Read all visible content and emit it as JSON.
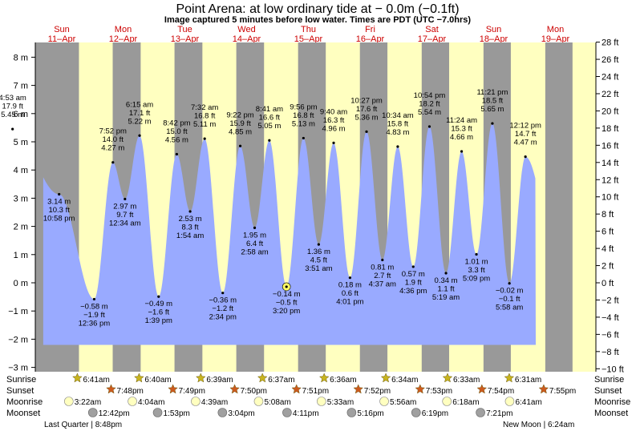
{
  "title": "Point Arena: at low  ordinary tide at − 0.0m (−0.1ft)",
  "subtitle": "Image captured 5 minutes before low water. Times are PDT (UTC −7.0hrs)",
  "days": [
    {
      "dow": "Sun",
      "date": "11–Apr"
    },
    {
      "dow": "Mon",
      "date": "12–Apr"
    },
    {
      "dow": "Tue",
      "date": "13–Apr"
    },
    {
      "dow": "Wed",
      "date": "14–Apr"
    },
    {
      "dow": "Thu",
      "date": "15–Apr"
    },
    {
      "dow": "Fri",
      "date": "16–Apr"
    },
    {
      "dow": "Sat",
      "date": "17–Apr"
    },
    {
      "dow": "Sun",
      "date": "18–Apr"
    },
    {
      "dow": "Mon",
      "date": "19–Apr"
    }
  ],
  "row_labels": {
    "sunrise": "Sunrise",
    "sunset": "Sunset",
    "moonrise": "Moonrise",
    "moonset": "Moonset"
  },
  "moon_notes": {
    "last_quarter": "Last Quarter | 8:48pm",
    "new_moon": "New Moon | 6:24am"
  },
  "colors": {
    "day": "#ffffc0",
    "night": "#999999",
    "water": "#99aaff",
    "day_label": "#cc0000",
    "sunrise_star": "#c8b41e",
    "sunset_star": "#cc5a1e",
    "moonrise": "#ffffc0",
    "moonset": "#a0a0a0",
    "current_marker": "#ffff66"
  },
  "chart_data": {
    "type": "area",
    "ylim_m": [
      -3,
      8.5
    ],
    "y_ticks_m": [
      8,
      7,
      6,
      5,
      4,
      3,
      2,
      1,
      0,
      -1,
      -2,
      -3
    ],
    "y_ticks_ft": [
      28,
      26,
      24,
      22,
      20,
      18,
      16,
      14,
      12,
      10,
      8,
      6,
      4,
      2,
      0,
      -2,
      -4,
      -6,
      -8,
      -10
    ],
    "tides": [
      {
        "day": 0,
        "time": "4:53 am",
        "ft": "17.9 ft",
        "m": 5.45,
        "type": "high"
      },
      {
        "day": 0,
        "time": "10:58 pm",
        "ft": "10.3 ft",
        "m": 3.14,
        "type": "low"
      },
      {
        "day": 1,
        "time": "12:36 pm",
        "ft": "−1.9 ft",
        "m": -0.58,
        "type": "low"
      },
      {
        "day": 1,
        "time": "7:52 pm",
        "ft": "14.0 ft",
        "m": 4.27,
        "type": "high"
      },
      {
        "day": 2,
        "time": "12:34 am",
        "ft": "9.7 ft",
        "m": 2.97,
        "type": "low"
      },
      {
        "day": 2,
        "time": "6:15 am",
        "ft": "17.1 ft",
        "m": 5.22,
        "type": "high"
      },
      {
        "day": 2,
        "time": "1:39 pm",
        "ft": "−1.6 ft",
        "m": -0.49,
        "type": "low"
      },
      {
        "day": 2,
        "time": "8:42 pm",
        "ft": "15.0 ft",
        "m": 4.56,
        "type": "high"
      },
      {
        "day": 3,
        "time": "1:54 am",
        "ft": "8.3 ft",
        "m": 2.53,
        "type": "low"
      },
      {
        "day": 3,
        "time": "7:32 am",
        "ft": "16.8 ft",
        "m": 5.11,
        "type": "high"
      },
      {
        "day": 3,
        "time": "2:34 pm",
        "ft": "−1.2 ft",
        "m": -0.36,
        "type": "low"
      },
      {
        "day": 3,
        "time": "9:22 pm",
        "ft": "15.9 ft",
        "m": 4.85,
        "type": "high"
      },
      {
        "day": 4,
        "time": "2:58 am",
        "ft": "6.4 ft",
        "m": 1.95,
        "type": "low"
      },
      {
        "day": 4,
        "time": "8:41 am",
        "ft": "16.6 ft",
        "m": 5.05,
        "type": "high"
      },
      {
        "day": 4,
        "time": "3:20 pm",
        "ft": "−0.5 ft",
        "m": -0.14,
        "type": "low"
      },
      {
        "day": 4,
        "time": "9:56 pm",
        "ft": "16.8 ft",
        "m": 5.13,
        "type": "high"
      },
      {
        "day": 5,
        "time": "3:51 am",
        "ft": "4.5 ft",
        "m": 1.36,
        "type": "low"
      },
      {
        "day": 5,
        "time": "9:40 am",
        "ft": "16.3 ft",
        "m": 4.96,
        "type": "high"
      },
      {
        "day": 5,
        "time": "4:01 pm",
        "ft": "0.6 ft",
        "m": 0.18,
        "type": "low"
      },
      {
        "day": 5,
        "time": "10:27 pm",
        "ft": "17.6 ft",
        "m": 5.36,
        "type": "high"
      },
      {
        "day": 6,
        "time": "4:37 am",
        "ft": "2.7 ft",
        "m": 0.81,
        "type": "low"
      },
      {
        "day": 6,
        "time": "10:34 am",
        "ft": "15.8 ft",
        "m": 4.83,
        "type": "high"
      },
      {
        "day": 6,
        "time": "4:36 pm",
        "ft": "1.9 ft",
        "m": 0.57,
        "type": "low"
      },
      {
        "day": 6,
        "time": "10:54 pm",
        "ft": "18.2 ft",
        "m": 5.54,
        "type": "high"
      },
      {
        "day": 7,
        "time": "5:19 am",
        "ft": "1.1 ft",
        "m": 0.34,
        "type": "low"
      },
      {
        "day": 7,
        "time": "11:24 am",
        "ft": "15.3 ft",
        "m": 4.66,
        "type": "high"
      },
      {
        "day": 7,
        "time": "5:09 pm",
        "ft": "3.3 ft",
        "m": 1.01,
        "type": "low"
      },
      {
        "day": 7,
        "time": "11:21 pm",
        "ft": "18.5 ft",
        "m": 5.65,
        "type": "high"
      },
      {
        "day": 8,
        "time": "5:58 am",
        "ft": "−0.1 ft",
        "m": -0.02,
        "type": "low"
      },
      {
        "day": 8,
        "time": "12:12 pm",
        "ft": "14.7 ft",
        "m": 4.47,
        "type": "high"
      }
    ],
    "sunrise": [
      "6:41am",
      "6:40am",
      "6:39am",
      "6:37am",
      "6:36am",
      "6:34am",
      "6:33am",
      "6:31am"
    ],
    "sunset": [
      "7:48pm",
      "7:49pm",
      "7:50pm",
      "7:51pm",
      "7:52pm",
      "7:53pm",
      "7:54pm",
      "7:55pm"
    ],
    "moonrise": [
      "3:22am",
      "4:04am",
      "4:39am",
      "5:08am",
      "5:33am",
      "5:56am",
      "6:18am",
      "6:41am"
    ],
    "moonset": [
      "12:42pm",
      "1:53pm",
      "3:04pm",
      "4:11pm",
      "5:16pm",
      "6:19pm",
      "7:21pm"
    ]
  }
}
